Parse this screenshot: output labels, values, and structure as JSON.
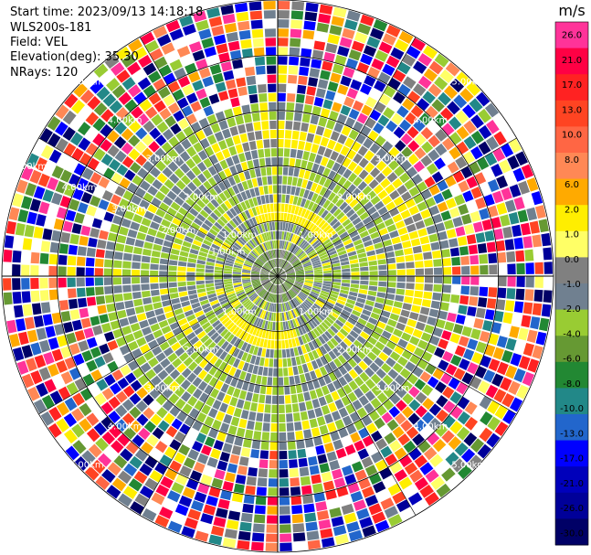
{
  "header": {
    "start_time": "Start time: 2023/09/13 14:18:18",
    "instrument": "WLS200s-181",
    "field": "Field: VEL",
    "elevation": "Elevation(deg): 35.30",
    "nrays": "NRays: 120"
  },
  "chart_data": {
    "type": "heatmap",
    "projection": "polar-ppi",
    "unit": "m/s",
    "range_ring_labels": [
      "1.00km",
      "2.00km",
      "3.00km",
      "4.00km",
      "5.00km"
    ],
    "range_rings_km": [
      1,
      2,
      3,
      4,
      5
    ],
    "max_range_km": 5.0,
    "n_rays": 120,
    "colorbar": {
      "title": "m/s",
      "ticks": [
        "26.0",
        "21.0",
        "17.0",
        "13.0",
        "10.0",
        "8.0",
        "6.0",
        "2.0",
        "1.0",
        "0.0",
        "-1.0",
        "-2.0",
        "-4.0",
        "-6.0",
        "-8.0",
        "-10.0",
        "-13.0",
        "-17.0",
        "-21.0",
        "-26.0",
        "-30.0"
      ],
      "colors": [
        "#ff3399",
        "#ff0044",
        "#ff2222",
        "#ff4422",
        "#ff6644",
        "#ff8855",
        "#ffaa00",
        "#ffee00",
        "#ffff66",
        "#808080",
        "#708090",
        "#99cc33",
        "#669933",
        "#228833",
        "#228888",
        "#2266cc",
        "#0000ff",
        "#0000bb",
        "#000099",
        "#000066"
      ]
    },
    "description_fields": {
      "inner_region_velocity_range": [
        -2.0,
        2.0
      ],
      "outer_region": "noisy"
    }
  }
}
